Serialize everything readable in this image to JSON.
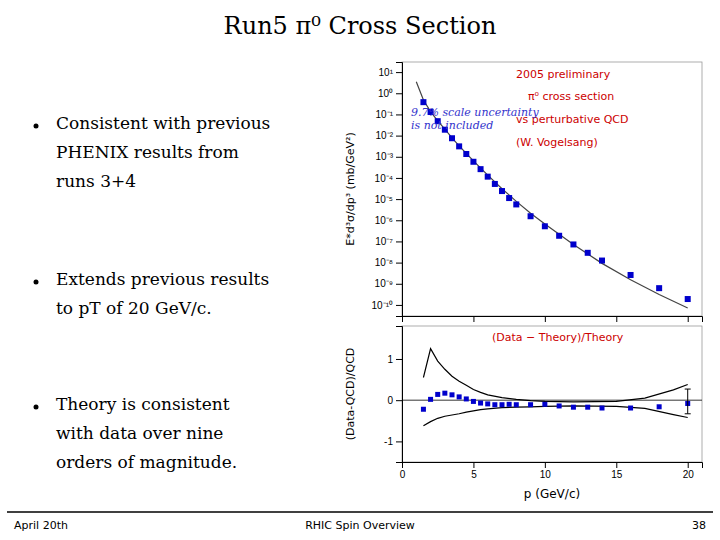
{
  "chart_data": [
    {
      "type": "line",
      "title": "Run5 π⁰ Cross Section",
      "log": "y",
      "ylabel": "E*d³σ/dp³ (mb/GeV²)",
      "xlim": [
        0,
        21
      ],
      "xticks": [
        0,
        5,
        10,
        15,
        20
      ],
      "ylim": [
        3e-11,
        30
      ],
      "yticks": [
        {
          "value": 1e-10,
          "label": "10⁻¹⁰"
        },
        {
          "value": 1e-09,
          "label": "10⁻⁹"
        },
        {
          "value": 1e-08,
          "label": "10⁻⁸"
        },
        {
          "value": 1e-07,
          "label": "10⁻⁷"
        },
        {
          "value": 1e-06,
          "label": "10⁻⁶"
        },
        {
          "value": 1e-05,
          "label": "10⁻⁵"
        },
        {
          "value": 0.0001,
          "label": "10⁻⁴"
        },
        {
          "value": 0.001,
          "label": "10⁻³"
        },
        {
          "value": 0.01,
          "label": "10⁻²"
        },
        {
          "value": 0.1,
          "label": "10⁻¹"
        },
        {
          "value": 1,
          "label": "10⁰"
        },
        {
          "value": 10,
          "label": "10¹"
        }
      ],
      "tick_labels": "y",
      "series": [
        {
          "type": "line",
          "color": "#444444",
          "line_style": "solid",
          "x": [
            1.0,
            1.5,
            2.0,
            2.5,
            3.0,
            3.5,
            4.0,
            4.5,
            5.0,
            6.0,
            7.0,
            8.0,
            9.0,
            10.0,
            12.0,
            14.0,
            16.0,
            18.0,
            20.0
          ],
          "values": [
            3.5,
            0.48,
            0.135,
            0.05,
            0.02,
            0.0078,
            0.0033,
            0.00145,
            0.00064,
            0.000135,
            3.1e-05,
            7.8e-06,
            2.15e-06,
            6.7e-07,
            7.2e-08,
            9.2e-09,
            1.55e-09,
            3.1e-10,
            7.2e-11
          ]
        },
        {
          "type": "scatter",
          "color": "#0000CC",
          "marker": "square",
          "x": [
            1.5,
            2.0,
            2.5,
            3.0,
            3.5,
            4.0,
            4.5,
            5.0,
            5.5,
            6.0,
            6.5,
            7.0,
            7.5,
            8.0,
            9.0,
            10.0,
            11.0,
            12.0,
            13.0,
            14.0,
            16.0,
            18.0,
            20.0
          ],
          "values": [
            0.38,
            0.13,
            0.048,
            0.019,
            0.0075,
            0.0031,
            0.00135,
            0.00058,
            0.00026,
            0.000115,
            5.2e-05,
            2.4e-05,
            1.12e-05,
            5.6e-06,
            1.55e-06,
            5.2e-07,
            1.85e-07,
            7.2e-08,
            2.9e-08,
            1.25e-08,
            2.6e-09,
            6.2e-10,
            1.9e-10
          ]
        }
      ],
      "annotations": [
        {
          "text": "2005 preliminary",
          "color": "#CC0000"
        },
        {
          "text": "π⁰ cross section",
          "color": "#CC0000"
        },
        {
          "text": "vs perturbative QCD",
          "color": "#CC0000"
        },
        {
          "text": "(W. Vogelsang)",
          "color": "#CC0000"
        },
        {
          "text": "9.7% scale uncertainty\nis not included",
          "color": "#3333CC"
        }
      ]
    },
    {
      "type": "line",
      "xlabel": "p (GeV/c)",
      "ylabel": "(Data-QCD)/QCD",
      "xlim": [
        0,
        21
      ],
      "xticks": [
        0,
        5,
        10,
        15,
        20
      ],
      "ylim": [
        -1.5,
        1.8
      ],
      "yticks": [
        -1,
        0,
        1
      ],
      "series": [
        {
          "type": "line",
          "color": "black",
          "line_style": "solid",
          "x": [
            1.5,
            2.0,
            2.5,
            3.0,
            3.5,
            4.0,
            4.5,
            5.0,
            5.5,
            6.0,
            7.0,
            8.0,
            9.0,
            10.0,
            12.0,
            15.0,
            17.0,
            19.0,
            20.0
          ],
          "values": [
            0.55,
            1.25,
            0.95,
            0.75,
            0.58,
            0.46,
            0.36,
            0.26,
            0.19,
            0.13,
            0.06,
            0.02,
            -0.01,
            -0.03,
            -0.04,
            -0.03,
            0.05,
            0.25,
            0.38
          ]
        },
        {
          "type": "line",
          "color": "black",
          "line_style": "solid",
          "x": [
            1.5,
            2.0,
            2.5,
            3.0,
            3.5,
            4.0,
            4.5,
            5.0,
            5.5,
            6.0,
            7.0,
            8.0,
            9.0,
            10.0,
            12.0,
            15.0,
            17.0,
            19.0,
            20.0
          ],
          "values": [
            -0.62,
            -0.52,
            -0.44,
            -0.39,
            -0.36,
            -0.33,
            -0.29,
            -0.26,
            -0.23,
            -0.21,
            -0.18,
            -0.17,
            -0.16,
            -0.15,
            -0.14,
            -0.15,
            -0.2,
            -0.35,
            -0.42
          ]
        },
        {
          "type": "hline",
          "color": "black",
          "values": [
            0
          ]
        },
        {
          "type": "scatter",
          "color": "#0000CC",
          "marker": "square",
          "x": [
            1.5,
            2.0,
            2.5,
            3.0,
            3.5,
            4.0,
            4.5,
            5.0,
            5.5,
            6.0,
            6.5,
            7.0,
            7.5,
            8.0,
            9.0,
            10.0,
            11.0,
            12.0,
            13.0,
            14.0,
            16.0,
            18.0,
            20.0
          ],
          "values": [
            -0.22,
            0.02,
            0.14,
            0.17,
            0.13,
            0.08,
            0.03,
            -0.03,
            -0.07,
            -0.09,
            -0.11,
            -0.11,
            -0.1,
            -0.11,
            -0.11,
            -0.1,
            -0.14,
            -0.17,
            -0.17,
            -0.19,
            -0.19,
            -0.16,
            -0.08
          ],
          "error_minus": [
            null,
            null,
            null,
            null,
            null,
            null,
            null,
            null,
            null,
            null,
            null,
            null,
            null,
            null,
            null,
            null,
            null,
            null,
            null,
            null,
            null,
            null,
            0.25
          ],
          "error_plus": [
            null,
            null,
            null,
            null,
            null,
            null,
            null,
            null,
            null,
            null,
            null,
            null,
            null,
            null,
            null,
            null,
            null,
            null,
            null,
            null,
            null,
            null,
            0.35
          ]
        }
      ],
      "annotations": [
        {
          "text": "(Data − Theory)/Theory",
          "color": "#CC0000"
        }
      ]
    }
  ],
  "bullets": [
    [
      "Consistent with previous",
      "PHENIX results from",
      "runs 3+4"
    ],
    [
      "Extends previous results",
      "to pT of 20 GeV/c."
    ],
    [
      "Theory is consistent",
      "with data over nine",
      "orders of magnitude."
    ]
  ],
  "footer": [
    "April 20th",
    "RHIC Spin Overview",
    "38"
  ]
}
